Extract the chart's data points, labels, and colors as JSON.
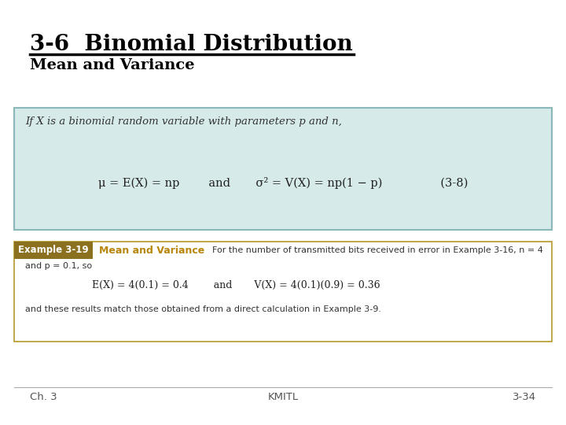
{
  "title": "3-6  Binomial Distribution",
  "subtitle": "Mean and Variance",
  "bg_color": "#ffffff",
  "title_color": "#000000",
  "subtitle_color": "#000000",
  "box1_bg": "#d6eaea",
  "box1_border": "#8ab8b8",
  "box1_text1": "If X is a binomial random variable with parameters p and n,",
  "box1_formula": "μ = E(X) = np        and       σ² = V(X) = np(1 − p)                (3-8)",
  "box2_bg": "#ffffff",
  "box2_border": "#b8982a",
  "ex_label_bg": "#8b7020",
  "ex_label_text": "Example 3-19",
  "ex_label_color": "#ffffff",
  "ex_title": "Mean and Variance",
  "ex_title_color": "#b8860b",
  "ex_text1": "For the number of transmitted bits received in error in Example 3-16, n = 4",
  "ex_text1b": "and p = 0.1, so",
  "ex_formula": "E(X) = 4(0.1) = 0.4        and       V(X) = 4(0.1)(0.9) = 0.36",
  "ex_text3": "and these results match those obtained from a direct calculation in Example 3-9.",
  "footer_left": "Ch. 3",
  "footer_center": "KMITL",
  "footer_right": "3-34",
  "footer_color": "#555555"
}
